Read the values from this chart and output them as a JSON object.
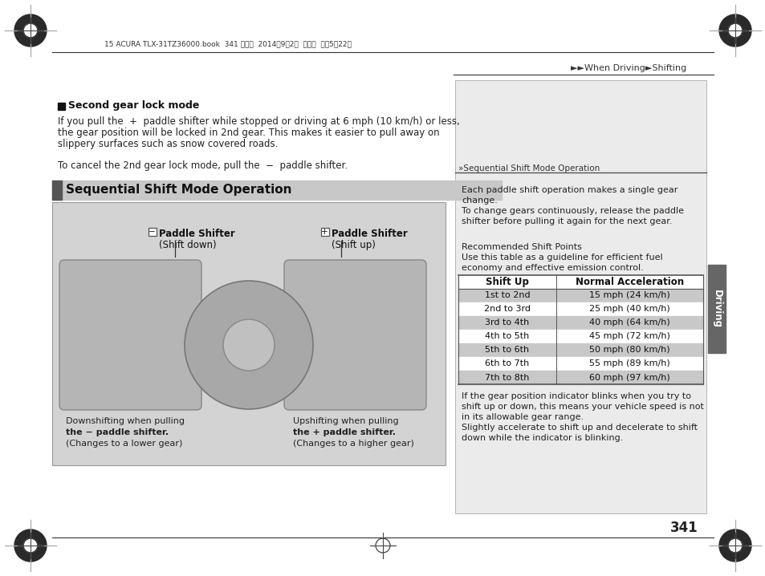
{
  "page_bg": "#ffffff",
  "page_number": "341",
  "header_text": "15 ACURA TLX-31TZ36000.book  341 ページ  ２０１４年９月２日  火曜日  午後５時２２分",
  "breadcrumb": "►►When Driving►Shifting",
  "section_title_1_bold": "Second gear lock mode",
  "para1": "If you pull the  +  paddle shifter while stopped or driving at 6 mph (10 km/h) or less,\nthe gear position will be locked in 2nd gear. This makes it easier to pull away on\nslippery surfaces such as snow covered roads.",
  "para2": "To cancel the 2nd gear lock mode, pull the  −  paddle shifter.",
  "section_title_2": "Sequential Shift Mode Operation",
  "section2_bar_bg": "#c8c8c8",
  "section2_bar_dark": "#555555",
  "diagram_bg": "#d3d3d3",
  "left_label_line1": "− Paddle Shifter",
  "left_label_line2": "(Shift down)",
  "right_label_line1": "+ Paddle Shifter",
  "right_label_line2": "(Shift up)",
  "caption_left": [
    "Downshifting when pulling",
    "the − paddle shifter.",
    "(Changes to a lower gear)"
  ],
  "caption_right": [
    "Upshifting when pulling",
    "the + paddle shifter.",
    "(Changes to a higher gear)"
  ],
  "right_panel_bg": "#ebebeb",
  "right_panel_border": "#aaaaaa",
  "right_header_label": "»Sequential Shift Mode Operation",
  "right_p1": "Each paddle shift operation makes a single gear\nchange.\nTo change gears continuously, release the paddle\nshifter before pulling it again for the next gear.",
  "right_p2_title": "Recommended Shift Points",
  "right_p2_body": "Use this table as a guideline for efficient fuel\neconomy and effective emission control.",
  "table_col1": "Shift Up",
  "table_col2": "Normal Acceleration",
  "table_rows": [
    [
      "1st to 2nd",
      "15 mph (24 km/h)",
      "#c8c8c8"
    ],
    [
      "2nd to 3rd",
      "25 mph (40 km/h)",
      "#ffffff"
    ],
    [
      "3rd to 4th",
      "40 mph (64 km/h)",
      "#c8c8c8"
    ],
    [
      "4th to 5th",
      "45 mph (72 km/h)",
      "#ffffff"
    ],
    [
      "5th to 6th",
      "50 mph (80 km/h)",
      "#c8c8c8"
    ],
    [
      "6th to 7th",
      "55 mph (89 km/h)",
      "#ffffff"
    ],
    [
      "7th to 8th",
      "60 mph (97 km/h)",
      "#c8c8c8"
    ]
  ],
  "right_p3": "If the gear position indicator blinks when you try to\nshift up or down, this means your vehicle speed is not\nin its allowable gear range.\nSlightly accelerate to shift up and decelerate to shift\ndown while the indicator is blinking.",
  "sidebar_text": "Driving",
  "sidebar_bg": "#666666"
}
